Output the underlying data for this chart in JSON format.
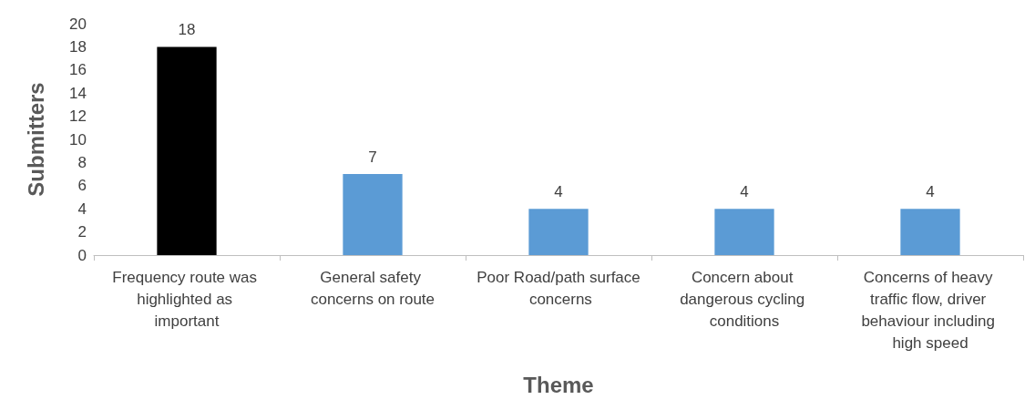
{
  "chart_data": {
    "type": "bar",
    "xlabel": "Theme",
    "ylabel": "Submitters",
    "categories": [
      "Frequency route was highlighted as important",
      "General safety concerns on route",
      "Poor Road/path surface concerns",
      "Concern about dangerous cycling conditions",
      "Concerns of heavy traffic flow, driver behaviour including high speed"
    ],
    "values": [
      18,
      7,
      4,
      4,
      4
    ],
    "colors": [
      "#000000",
      "#5b9bd5",
      "#5b9bd5",
      "#5b9bd5",
      "#5b9bd5"
    ],
    "ylim": [
      0,
      20
    ],
    "yticks": [
      0,
      2,
      4,
      6,
      8,
      10,
      12,
      14,
      16,
      18,
      20
    ],
    "data_labels": true
  }
}
